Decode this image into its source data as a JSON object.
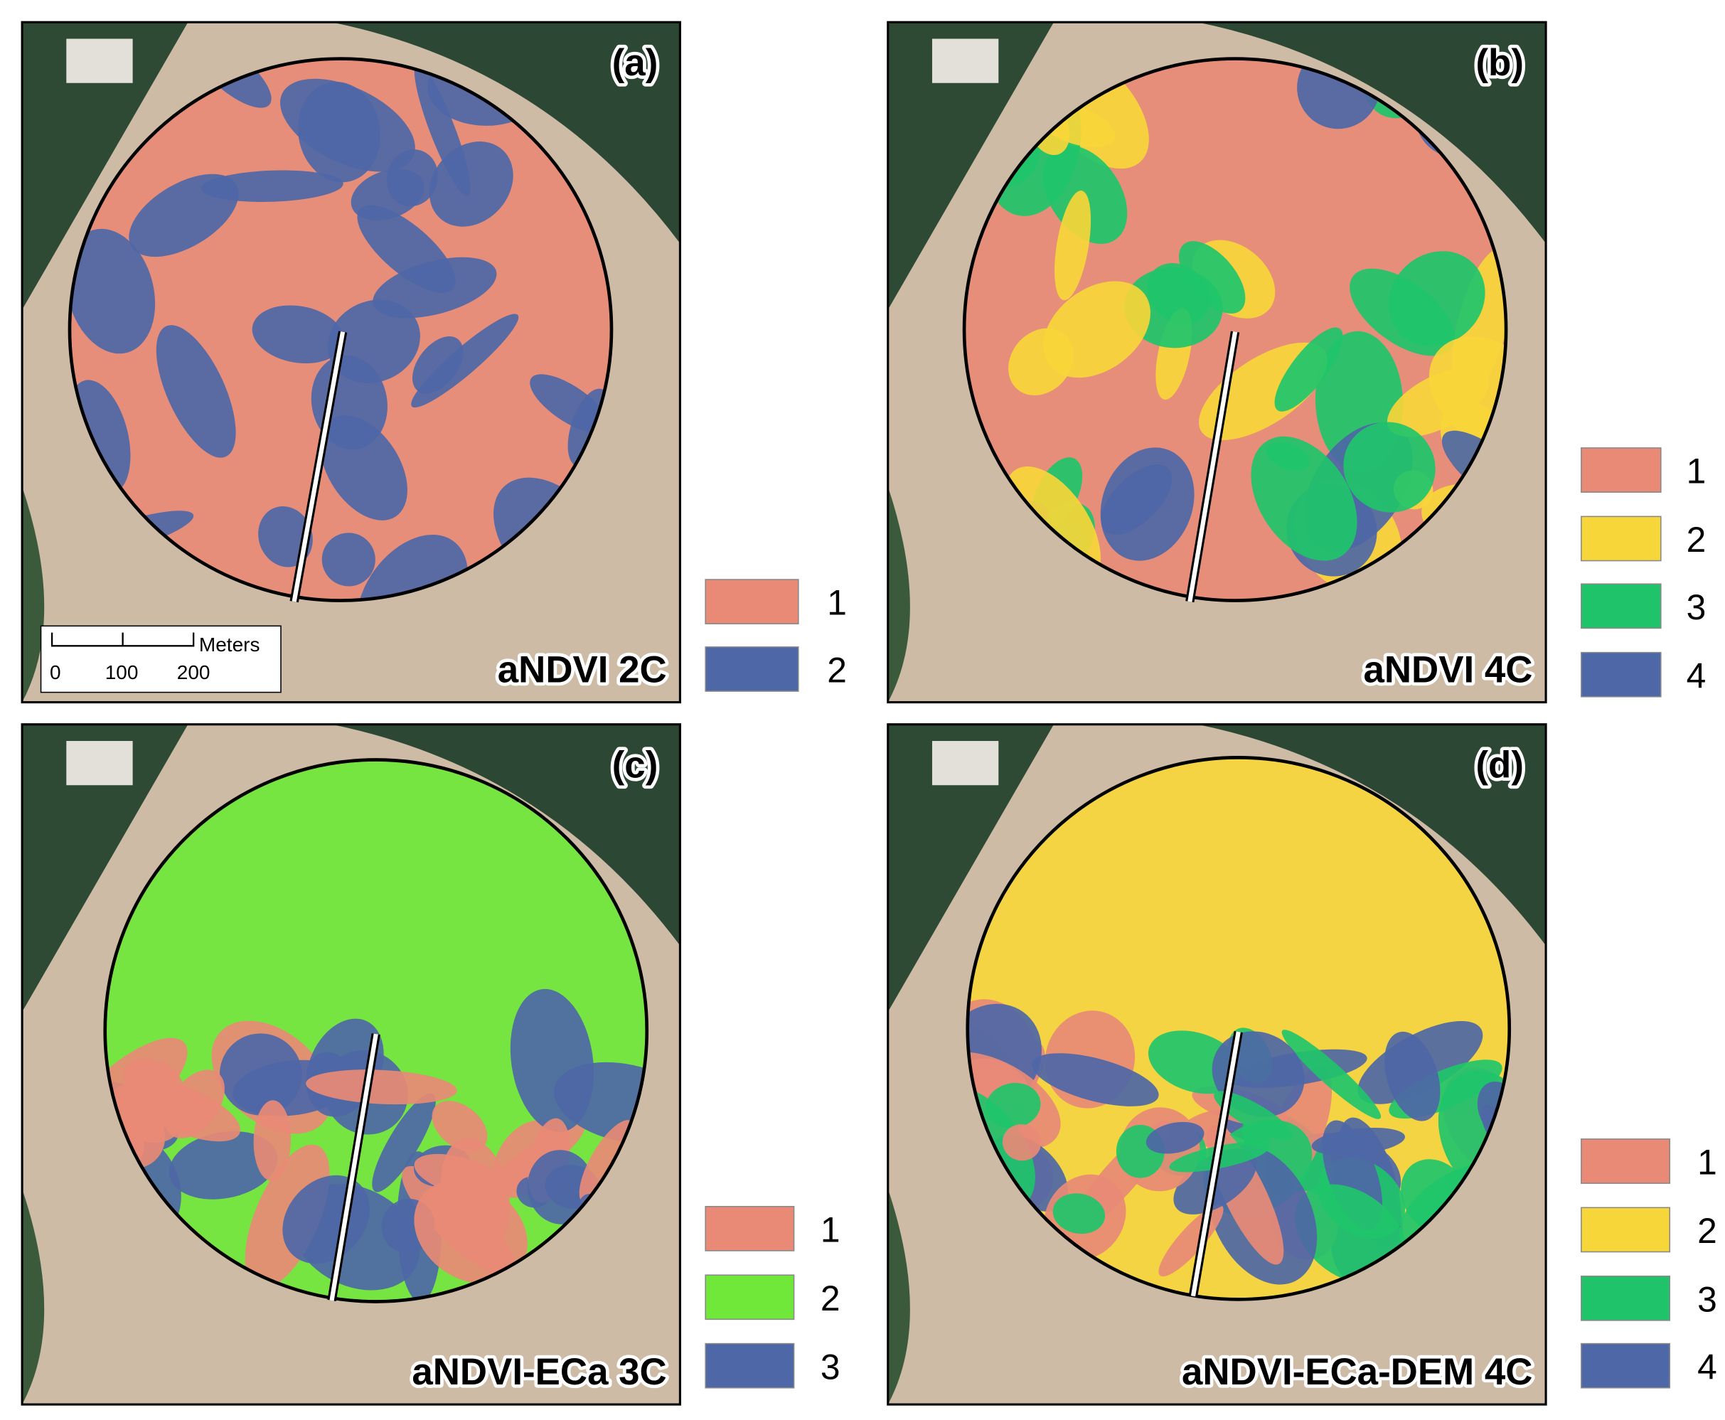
{
  "panels": [
    {
      "label": "(a)",
      "title": "aNDVI 2C",
      "legend": [
        {
          "label": "1",
          "color": "#e88a76"
        },
        {
          "label": "2",
          "color": "#4e67a6"
        }
      ]
    },
    {
      "label": "(b)",
      "title": "aNDVI 4C",
      "legend": [
        {
          "label": "1",
          "color": "#e88a76"
        },
        {
          "label": "2",
          "color": "#f7d63a"
        },
        {
          "label": "3",
          "color": "#1fc46a"
        },
        {
          "label": "4",
          "color": "#4e67a6"
        }
      ]
    },
    {
      "label": "(c)",
      "title": "aNDVI-ECa 3C",
      "legend": [
        {
          "label": "1",
          "color": "#e88a76"
        },
        {
          "label": "2",
          "color": "#6fe83a"
        },
        {
          "label": "3",
          "color": "#4e67a6"
        }
      ]
    },
    {
      "label": "(d)",
      "title": "aNDVI-ECa-DEM 4C",
      "legend": [
        {
          "label": "1",
          "color": "#e88a76"
        },
        {
          "label": "2",
          "color": "#f7d63a"
        },
        {
          "label": "3",
          "color": "#1fc46a"
        },
        {
          "label": "4",
          "color": "#4e67a6"
        }
      ]
    }
  ],
  "scale_bar": {
    "unit": "Meters",
    "ticks": [
      "0",
      "100",
      "200"
    ]
  }
}
